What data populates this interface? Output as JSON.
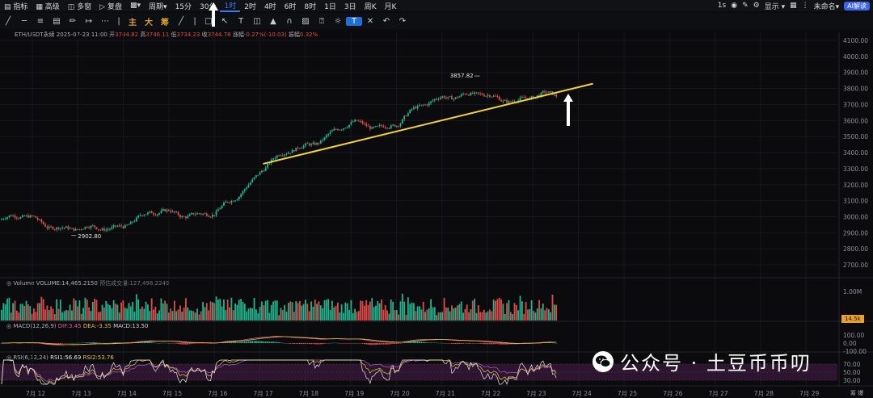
{
  "toolbar": {
    "indicators_label": "指标",
    "advanced_label": "高级",
    "multi_window_label": "多窗",
    "replay_label": "复盘",
    "period_label": "周期",
    "intervals": [
      "15分",
      "30分",
      "1时",
      "2时",
      "4时",
      "6时",
      "8时",
      "1日",
      "3日",
      "周K",
      "月K"
    ],
    "active_interval": "1时",
    "right_1s": "1s",
    "display_label": "显示",
    "not_connected_label": "未命名",
    "ai_label": "AI解读"
  },
  "drawing_tools": {
    "zhu_label": "主",
    "da_label": "大",
    "chou_label": "筹"
  },
  "info": {
    "symbol": "ETH/USDT永续",
    "datetime": "2025-07-23 11:00",
    "open_label": "开",
    "open": "3744.82",
    "high_label": "高",
    "high": "3746.11",
    "low_label": "低",
    "low": "3734.23",
    "close_label": "收",
    "close": "3744.78",
    "change_label": "涨幅",
    "change": "-0.27%(-10.03)",
    "amp_label": "振幅",
    "amp": "0.32%"
  },
  "volume_info": {
    "label": "Volume",
    "vol_label": "VOLUME:",
    "vol_value": "14,465.2150",
    "amt_label": "预估成交量:",
    "amt_value": "127,498.2249",
    "badge": "14.5k"
  },
  "macd_info": {
    "label": "MACD(12,26,9)",
    "dif_label": "DIF:",
    "dif": "3.45",
    "dea_label": "DEA:",
    "dea": "-3.35",
    "macd_label": "MACD:",
    "macd": "13.50"
  },
  "rsi_info": {
    "label": "RSI(6,12,24)",
    "rsi1_label": "RSI1:",
    "rsi1": "56.69",
    "rsi2_label": "RSI2:",
    "rsi2": "53.76"
  },
  "watermark": {
    "text": "公众号 · 土豆币币叨"
  },
  "bottom_right": "筹 爆",
  "colors": {
    "up": "#1fb58f",
    "down": "#e24a4a",
    "trendline": "#f2d33a",
    "background": "#0b0b0d",
    "accent": "#2f7cf6"
  },
  "chart_data": {
    "type": "candlestick",
    "title": "",
    "price_axis": {
      "ticks": [
        4100,
        4000,
        3900,
        3800,
        3700,
        3600,
        3500,
        3400,
        3300,
        3200,
        3100,
        3000,
        2900,
        2800,
        2700
      ],
      "ylim": [
        2640,
        4130
      ]
    },
    "x_axis": {
      "ticks": [
        "7月 12",
        "7月 13",
        "7月 14",
        "7月 15",
        "7月 16",
        "7月 17",
        "7月 18",
        "7月 19",
        "7月 20",
        "7月 21",
        "7月 22",
        "7月 23",
        "7月 24",
        "7月 25",
        "7月 26",
        "7月 27",
        "7月 28",
        "7月 29"
      ]
    },
    "annotations": [
      {
        "text": "3857.82",
        "kind": "high",
        "date": "7月 21",
        "price": 3857.82
      },
      {
        "text": "2902.80",
        "kind": "low",
        "date": "7月 13",
        "price": 2902.8
      }
    ],
    "trendline": {
      "from": {
        "date": "7月 17",
        "price": 3330
      },
      "to": {
        "date": "7月 24",
        "price": 3830
      }
    },
    "price_path": [
      [
        "7月 11",
        2980
      ],
      [
        "7月 12",
        2990
      ],
      [
        "7月 13",
        2905
      ],
      [
        "7月 14",
        2960
      ],
      [
        "7月 15",
        3040
      ],
      [
        "7月 16",
        3000
      ],
      [
        "7月 17",
        3300
      ],
      [
        "7月 18",
        3460
      ],
      [
        "7月 19",
        3570
      ],
      [
        "7月 20",
        3580
      ],
      [
        "7月 21",
        3770
      ],
      [
        "7月 22",
        3740
      ],
      [
        "7月 23",
        3745
      ]
    ],
    "volume_axis": {
      "ticks": [
        "1.00M"
      ]
    },
    "macd_axis": {
      "ticks": [
        100,
        0,
        -100
      ]
    },
    "rsi_axis": {
      "ticks": [
        70,
        50,
        30
      ]
    }
  }
}
